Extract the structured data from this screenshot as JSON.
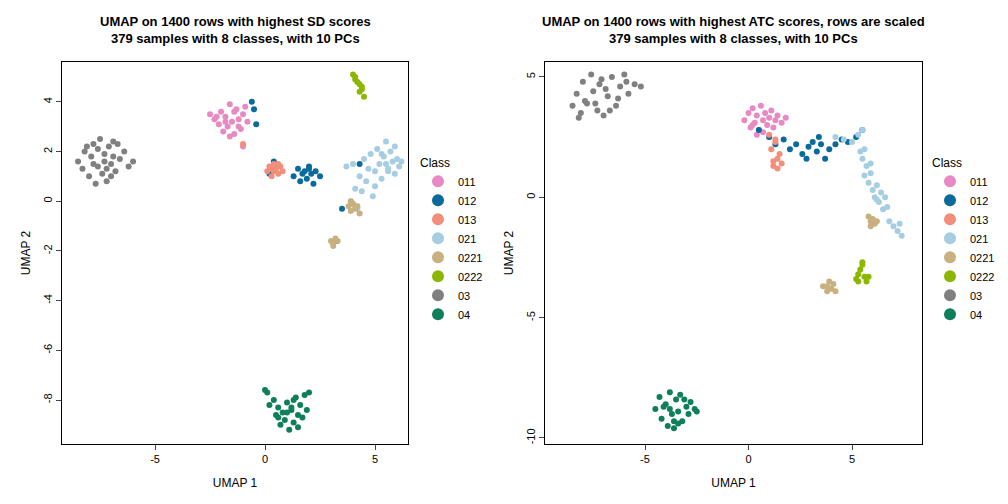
{
  "chart_data": [
    {
      "type": "scatter",
      "title": "UMAP on 1400 rows with highest SD scores\n379 samples with 8 classes, with 10 PCs",
      "xlabel": "UMAP 1",
      "ylabel": "UMAP 2",
      "legend_title": "Class",
      "xlim": [
        -9.23,
        6.5
      ],
      "ylim": [
        -9.77,
        5.6
      ],
      "xticks": [
        -5,
        0,
        5
      ],
      "yticks": [
        -8,
        -6,
        -4,
        -2,
        0,
        2,
        4
      ],
      "series": [
        {
          "name": "011",
          "color": "#E78AC3",
          "x": [
            -2.5,
            -2.3,
            -2.1,
            -2.0,
            -1.9,
            -1.8,
            -1.7,
            -1.6,
            -1.5,
            -1.4,
            -1.3,
            -1.2,
            -1.1,
            -1.0,
            -0.9,
            -0.8,
            -1.6,
            -1.4,
            -1.8,
            -1.2,
            -1.0,
            -2.2
          ],
          "y": [
            3.5,
            3.3,
            3.1,
            3.6,
            2.8,
            3.4,
            3.0,
            3.9,
            3.2,
            2.7,
            3.7,
            3.3,
            2.9,
            3.5,
            3.8,
            3.2,
            2.6,
            3.6,
            3.2,
            3.0,
            2.2,
            3.4
          ]
        },
        {
          "name": "012",
          "color": "#0A6A9C",
          "x": [
            -0.6,
            -0.4,
            -0.5,
            0.4,
            1.3,
            1.5,
            1.6,
            1.8,
            1.9,
            2.0,
            2.1,
            2.2,
            2.3,
            2.5,
            1.7,
            2.0,
            0.2,
            3.5,
            4.3,
            3.2
          ],
          "y": [
            4.0,
            3.1,
            3.7,
            1.6,
            1.0,
            1.3,
            0.8,
            1.2,
            0.9,
            1.4,
            1.1,
            0.7,
            1.2,
            1.0,
            1.1,
            1.3,
            1.1,
            -0.3,
            1.5,
            -1.6
          ]
        },
        {
          "name": "013",
          "color": "#F28E79",
          "x": [
            0.1,
            0.2,
            0.3,
            0.4,
            0.5,
            0.6,
            0.7,
            0.8,
            0.4,
            -1.0,
            0.3,
            0.6
          ],
          "y": [
            1.2,
            1.4,
            1.0,
            1.5,
            1.3,
            1.1,
            1.4,
            1.2,
            1.2,
            2.3,
            1.3,
            1.5
          ]
        },
        {
          "name": "021",
          "color": "#A6CEE3",
          "x": [
            3.7,
            3.9,
            4.0,
            4.2,
            4.4,
            4.5,
            4.6,
            4.8,
            4.9,
            5.0,
            5.1,
            5.2,
            5.3,
            5.4,
            5.5,
            5.6,
            5.7,
            5.8,
            5.9,
            6.0,
            6.1,
            6.2,
            4.7,
            5.0,
            5.3,
            5.6,
            4.3,
            4.1,
            5.9,
            5.5
          ],
          "y": [
            1.4,
            0.0,
            1.5,
            -0.3,
            0.4,
            1.7,
            0.8,
            1.9,
            0.2,
            1.2,
            2.1,
            1.5,
            0.9,
            1.8,
            2.4,
            1.3,
            2.0,
            1.6,
            1.1,
            1.7,
            1.4,
            1.6,
            1.3,
            0.6,
            1.9,
            1.2,
            1.0,
            0.5,
            2.2,
            1.5
          ]
        },
        {
          "name": "0221",
          "color": "#C8B07F",
          "x": [
            3.8,
            3.9,
            4.0,
            4.1,
            4.2,
            4.3,
            3.9,
            4.1,
            3.0,
            3.1,
            3.2,
            3.1,
            3.3
          ],
          "y": [
            -0.2,
            -0.4,
            -0.1,
            -0.3,
            -0.2,
            -0.5,
            0.0,
            -0.2,
            -1.6,
            -1.7,
            -1.5,
            -1.8,
            -1.6
          ]
        },
        {
          "name": "0222",
          "color": "#8DB600",
          "x": [
            4.0,
            4.1,
            4.2,
            4.3,
            4.4,
            4.5,
            4.3,
            4.1,
            4.4
          ],
          "y": [
            5.1,
            5.0,
            4.8,
            4.7,
            4.5,
            4.2,
            4.4,
            4.9,
            4.6
          ]
        },
        {
          "name": "03",
          "color": "#808080",
          "x": [
            -8.5,
            -8.3,
            -8.2,
            -8.0,
            -7.9,
            -7.8,
            -7.7,
            -7.6,
            -7.5,
            -7.4,
            -7.3,
            -7.2,
            -7.1,
            -7.0,
            -6.9,
            -6.8,
            -6.6,
            -6.4,
            -6.2,
            -6.0,
            -7.6,
            -7.3,
            -7.0,
            -8.1,
            -6.7,
            -7.8,
            -7.2,
            -6.9
          ],
          "y": [
            1.6,
            1.3,
            2.0,
            1.0,
            1.8,
            2.3,
            0.7,
            1.4,
            2.5,
            1.1,
            1.9,
            0.8,
            2.2,
            1.5,
            2.4,
            1.2,
            1.7,
            2.0,
            1.4,
            1.6,
            2.1,
            1.6,
            1.0,
            2.2,
            2.3,
            1.5,
            1.3,
            1.8
          ]
        },
        {
          "name": "04",
          "color": "#0E7F5A",
          "x": [
            0.0,
            0.1,
            0.2,
            0.4,
            0.5,
            0.6,
            0.7,
            0.8,
            0.9,
            1.0,
            1.1,
            1.2,
            1.3,
            1.4,
            1.5,
            1.6,
            1.7,
            1.8,
            1.9,
            2.0,
            1.0,
            1.3,
            0.6,
            1.5,
            1.2
          ],
          "y": [
            -7.6,
            -7.7,
            -8.2,
            -8.0,
            -8.6,
            -8.3,
            -9.0,
            -8.5,
            -8.8,
            -8.1,
            -9.2,
            -8.4,
            -8.9,
            -7.9,
            -8.6,
            -8.2,
            -8.7,
            -7.8,
            -8.4,
            -7.7,
            -8.5,
            -8.0,
            -8.7,
            -9.1,
            -8.3
          ]
        }
      ]
    },
    {
      "type": "scatter",
      "title": "UMAP on 1400 rows with highest ATC scores, rows are scaled\n379 samples with 8 classes, with 10 PCs",
      "xlabel": "UMAP 1",
      "ylabel": "UMAP 2",
      "legend_title": "Class",
      "xlim": [
        -9.83,
        8.38
      ],
      "ylim": [
        -10.25,
        5.62
      ],
      "xticks": [
        -5,
        0,
        5
      ],
      "yticks": [
        -10,
        -5,
        0,
        5
      ],
      "series": [
        {
          "name": "011",
          "color": "#E78AC3",
          "x": [
            -0.2,
            0.0,
            0.1,
            0.2,
            0.3,
            0.4,
            0.5,
            0.6,
            0.7,
            0.8,
            0.9,
            1.0,
            1.1,
            1.2,
            1.3,
            1.4,
            1.6,
            1.8,
            0.4,
            0.7,
            1.0,
            0.2
          ],
          "y": [
            3.2,
            3.5,
            2.9,
            3.7,
            3.1,
            3.4,
            2.8,
            3.8,
            3.2,
            3.5,
            3.0,
            3.3,
            3.6,
            2.9,
            3.2,
            3.4,
            3.1,
            3.3,
            2.6,
            2.7,
            2.5,
            3.0
          ]
        },
        {
          "name": "012",
          "color": "#0A6A9C",
          "x": [
            0.5,
            1.0,
            1.3,
            1.7,
            2.0,
            2.3,
            2.6,
            2.9,
            3.1,
            3.3,
            3.5,
            3.7,
            3.9,
            4.2,
            4.5,
            4.8,
            5.2,
            5.5,
            2.8,
            3.4
          ],
          "y": [
            2.8,
            2.5,
            2.2,
            2.4,
            2.0,
            2.2,
            1.8,
            2.1,
            2.3,
            1.9,
            2.2,
            1.6,
            2.0,
            2.2,
            2.4,
            2.3,
            2.5,
            2.8,
            1.6,
            2.5
          ]
        },
        {
          "name": "013",
          "color": "#F28E79",
          "x": [
            1.0,
            1.1,
            1.2,
            1.3,
            1.4,
            1.5,
            1.6,
            1.2,
            1.3,
            1.4
          ],
          "y": [
            2.6,
            2.0,
            1.5,
            2.3,
            1.2,
            1.8,
            1.4,
            1.3,
            2.4,
            1.6
          ]
        },
        {
          "name": "021",
          "color": "#A6CEE3",
          "x": [
            4.2,
            4.6,
            5.0,
            5.3,
            5.5,
            5.6,
            5.5,
            5.7,
            5.6,
            5.8,
            5.9,
            6.0,
            6.1,
            6.2,
            6.3,
            6.4,
            6.5,
            6.6,
            6.7,
            6.8,
            7.0,
            7.2,
            7.3,
            7.4,
            5.4,
            5.9,
            6.2
          ],
          "y": [
            2.5,
            2.4,
            2.3,
            2.6,
            2.8,
            2.0,
            1.6,
            1.3,
            0.9,
            0.6,
            1.0,
            0.3,
            0.0,
            0.5,
            -0.2,
            0.2,
            -0.5,
            0.0,
            -0.4,
            -1.0,
            -1.2,
            -1.4,
            -1.1,
            -1.6,
            1.9,
            1.4,
            -0.1
          ]
        },
        {
          "name": "0221",
          "color": "#C8B07F",
          "x": [
            5.8,
            5.9,
            6.0,
            6.1,
            6.2,
            5.9,
            3.6,
            3.8,
            3.9,
            4.0,
            4.1,
            4.2,
            3.8
          ],
          "y": [
            -0.8,
            -1.2,
            -0.9,
            -1.1,
            -1.0,
            -1.0,
            -3.7,
            -3.9,
            -3.5,
            -3.8,
            -3.6,
            -3.9,
            -3.7
          ]
        },
        {
          "name": "0222",
          "color": "#8DB600",
          "x": [
            5.2,
            5.3,
            5.4,
            5.5,
            5.6,
            5.7,
            5.8,
            5.5,
            5.3
          ],
          "y": [
            -3.4,
            -3.2,
            -3.0,
            -2.8,
            -3.3,
            -3.5,
            -3.3,
            -2.7,
            -3.5
          ]
        },
        {
          "name": "03",
          "color": "#808080",
          "x": [
            -8.5,
            -8.3,
            -8.1,
            -8.0,
            -7.8,
            -7.6,
            -7.5,
            -7.3,
            -7.1,
            -7.0,
            -6.8,
            -6.6,
            -6.4,
            -6.2,
            -6.0,
            -5.8,
            -5.5,
            -5.2,
            -7.9,
            -7.2,
            -6.7,
            -6.3,
            -5.9,
            -8.2,
            -7.4,
            -6.9
          ],
          "y": [
            3.8,
            4.3,
            3.5,
            4.8,
            3.9,
            5.1,
            4.4,
            3.6,
            4.9,
            3.4,
            4.2,
            5.0,
            3.8,
            4.6,
            5.1,
            4.3,
            4.7,
            4.6,
            4.0,
            4.7,
            3.6,
            4.1,
            4.8,
            3.3,
            3.9,
            4.5
          ]
        },
        {
          "name": "04",
          "color": "#0E7F5A",
          "x": [
            -4.5,
            -4.3,
            -4.2,
            -4.0,
            -3.9,
            -3.8,
            -3.7,
            -3.6,
            -3.5,
            -3.4,
            -3.3,
            -3.2,
            -3.0,
            -2.9,
            -2.8,
            -2.6,
            -2.5,
            -4.1,
            -3.6,
            -3.1,
            -3.8,
            -3.4
          ],
          "y": [
            -8.8,
            -8.3,
            -9.2,
            -8.6,
            -9.5,
            -8.1,
            -9.0,
            -9.6,
            -8.4,
            -8.9,
            -8.2,
            -9.3,
            -8.7,
            -9.0,
            -8.5,
            -8.8,
            -8.9,
            -8.7,
            -9.3,
            -8.4,
            -8.8,
            -9.4
          ]
        }
      ]
    }
  ]
}
